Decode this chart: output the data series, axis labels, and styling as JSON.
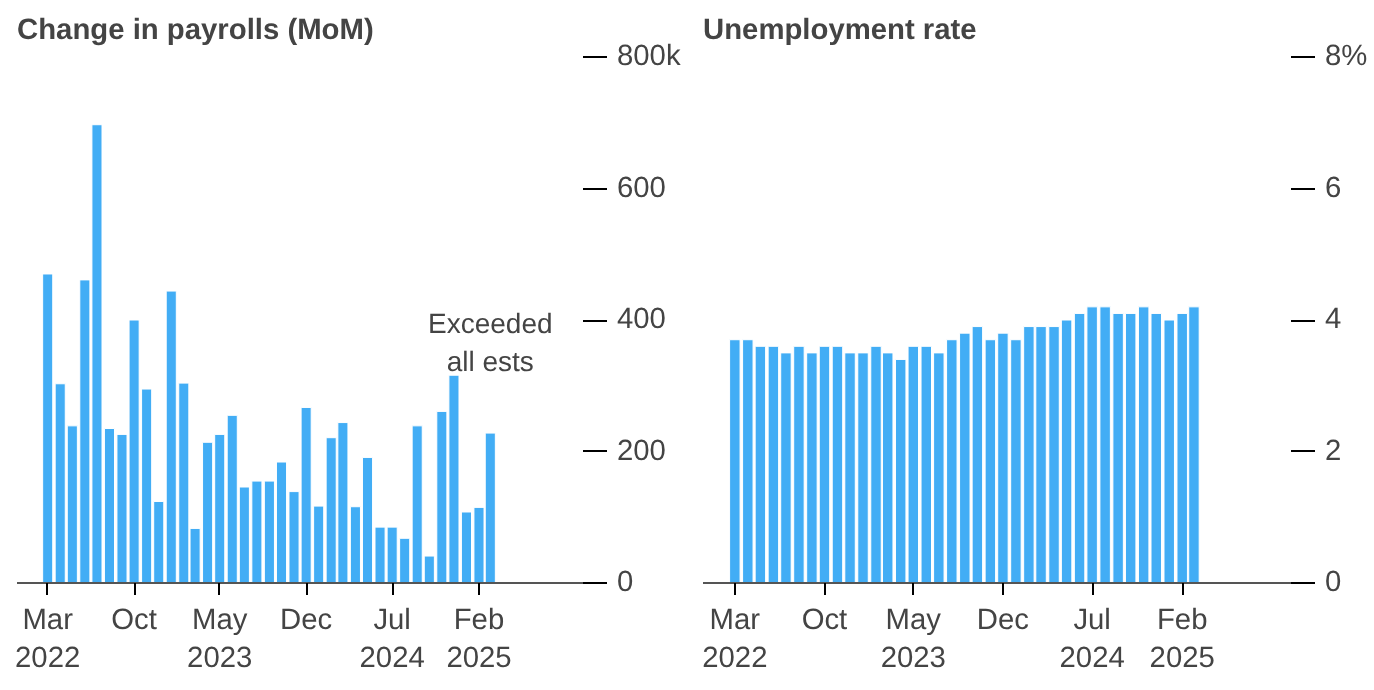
{
  "chart_data": [
    {
      "type": "bar",
      "title": "Change in payrolls (MoM)",
      "color": "#42adf5",
      "x": [
        "2022-03",
        "2022-04",
        "2022-05",
        "2022-06",
        "2022-07",
        "2022-08",
        "2022-09",
        "2022-10",
        "2022-11",
        "2022-12",
        "2023-01",
        "2023-02",
        "2023-03",
        "2023-04",
        "2023-05",
        "2023-06",
        "2023-07",
        "2023-08",
        "2023-09",
        "2023-10",
        "2023-11",
        "2023-12",
        "2024-01",
        "2024-02",
        "2024-03",
        "2024-04",
        "2024-05",
        "2024-06",
        "2024-07",
        "2024-08",
        "2024-09",
        "2024-10",
        "2024-11",
        "2024-12",
        "2025-01",
        "2025-02",
        "2025-03"
      ],
      "values": [
        470,
        303,
        239,
        461,
        697,
        235,
        226,
        400,
        295,
        124,
        444,
        304,
        83,
        214,
        226,
        255,
        146,
        155,
        155,
        184,
        139,
        267,
        117,
        221,
        244,
        116,
        191,
        85,
        85,
        68,
        239,
        41,
        261,
        316,
        108,
        115,
        228
      ],
      "xlim": [
        "2021-12-15",
        "2025-12-15"
      ],
      "xticks": [
        {
          "value": "2022-03",
          "label": "Mar\n2022"
        },
        {
          "value": "2022-10",
          "label": "Oct"
        },
        {
          "value": "2023-05",
          "label": "May\n2023"
        },
        {
          "value": "2023-12",
          "label": "Dec"
        },
        {
          "value": "2024-07",
          "label": "Jul\n2024"
        },
        {
          "value": "2025-02",
          "label": "Feb\n2025"
        }
      ],
      "ylim": [
        0,
        800
      ],
      "yticks": [
        0,
        200,
        400,
        600,
        {
          "value": 800,
          "label": "800k"
        }
      ],
      "annotations": [
        {
          "text": "Exceeded\nall ests",
          "x": "2025-03",
          "y": 228
        }
      ],
      "grid": false
    },
    {
      "type": "bar",
      "title": "Unemployment rate",
      "color": "#42adf5",
      "x": [
        "2022-03",
        "2022-04",
        "2022-05",
        "2022-06",
        "2022-07",
        "2022-08",
        "2022-09",
        "2022-10",
        "2022-11",
        "2022-12",
        "2023-01",
        "2023-02",
        "2023-03",
        "2023-04",
        "2023-05",
        "2023-06",
        "2023-07",
        "2023-08",
        "2023-09",
        "2023-10",
        "2023-11",
        "2023-12",
        "2024-01",
        "2024-02",
        "2024-03",
        "2024-04",
        "2024-05",
        "2024-06",
        "2024-07",
        "2024-08",
        "2024-09",
        "2024-10",
        "2024-11",
        "2024-12",
        "2025-01",
        "2025-02",
        "2025-03"
      ],
      "values": [
        3.7,
        3.7,
        3.6,
        3.6,
        3.5,
        3.6,
        3.5,
        3.6,
        3.6,
        3.5,
        3.5,
        3.6,
        3.5,
        3.4,
        3.6,
        3.6,
        3.5,
        3.7,
        3.8,
        3.9,
        3.7,
        3.8,
        3.7,
        3.9,
        3.9,
        3.9,
        4.0,
        4.1,
        4.2,
        4.2,
        4.1,
        4.1,
        4.2,
        4.1,
        4.0,
        4.1,
        4.2
      ],
      "xlim": [
        "2021-12-15",
        "2025-12-15"
      ],
      "xticks": [
        {
          "value": "2022-03",
          "label": "Mar\n2022"
        },
        {
          "value": "2022-10",
          "label": "Oct"
        },
        {
          "value": "2023-05",
          "label": "May\n2023"
        },
        {
          "value": "2023-12",
          "label": "Dec"
        },
        {
          "value": "2024-07",
          "label": "Jul\n2024"
        },
        {
          "value": "2025-02",
          "label": "Feb\n2025"
        }
      ],
      "ylim": [
        0,
        8
      ],
      "yticks": [
        0,
        2,
        4,
        6,
        {
          "value": 8,
          "label": "8%"
        }
      ],
      "grid": false
    }
  ]
}
